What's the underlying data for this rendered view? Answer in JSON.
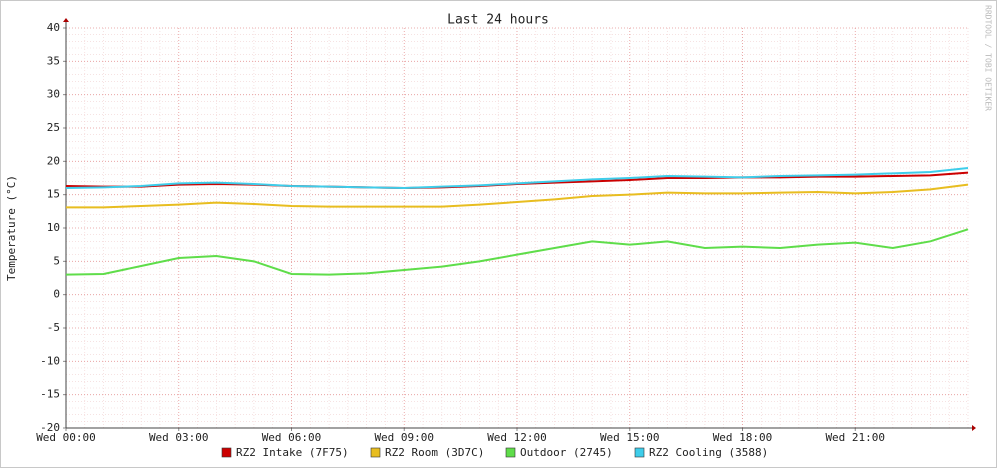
{
  "chart_data": {
    "type": "line",
    "title": "Last 24 hours",
    "y_label": "Temperature (°C)",
    "watermark": "RRDTOOL / TOBI OETIKER",
    "x": [
      0,
      1,
      2,
      3,
      4,
      5,
      6,
      7,
      8,
      9,
      10,
      11,
      12,
      13,
      14,
      15,
      16,
      17,
      18,
      19,
      20,
      21,
      22,
      23,
      24
    ],
    "xlim": [
      0,
      24
    ],
    "xticks": [
      {
        "value": 0,
        "label": "Wed 00:00"
      },
      {
        "value": 3,
        "label": "Wed 03:00"
      },
      {
        "value": 6,
        "label": "Wed 06:00"
      },
      {
        "value": 9,
        "label": "Wed 09:00"
      },
      {
        "value": 12,
        "label": "Wed 12:00"
      },
      {
        "value": 15,
        "label": "Wed 15:00"
      },
      {
        "value": 18,
        "label": "Wed 18:00"
      },
      {
        "value": 21,
        "label": "Wed 21:00"
      }
    ],
    "ylim": [
      -20,
      40
    ],
    "yticks": [
      -20,
      -15,
      -10,
      -5,
      0,
      5,
      10,
      15,
      20,
      25,
      30,
      35,
      40
    ],
    "grid": true,
    "series": [
      {
        "name": "RZ2 Intake (7F75)",
        "color": "#cc0000",
        "values": [
          16.3,
          16.2,
          16.2,
          16.5,
          16.6,
          16.5,
          16.3,
          16.2,
          16.1,
          16.0,
          16.1,
          16.3,
          16.6,
          16.8,
          17.0,
          17.2,
          17.5,
          17.5,
          17.6,
          17.6,
          17.7,
          17.7,
          17.8,
          17.9,
          18.3
        ]
      },
      {
        "name": "RZ2 Room (3D7C)",
        "color": "#e8bd20",
        "values": [
          13.1,
          13.1,
          13.3,
          13.5,
          13.8,
          13.6,
          13.3,
          13.2,
          13.2,
          13.2,
          13.2,
          13.5,
          13.9,
          14.3,
          14.8,
          15.0,
          15.3,
          15.2,
          15.2,
          15.3,
          15.4,
          15.2,
          15.4,
          15.8,
          16.5
        ]
      },
      {
        "name": "Outdoor (2745)",
        "color": "#5fdd4a",
        "values": [
          3.0,
          3.1,
          4.3,
          5.5,
          5.8,
          5.0,
          3.1,
          3.0,
          3.2,
          3.7,
          4.2,
          5.0,
          6.0,
          7.0,
          8.0,
          7.5,
          8.0,
          7.0,
          7.2,
          7.0,
          7.5,
          7.8,
          7.0,
          8.0,
          9.8
        ]
      },
      {
        "name": "RZ2 Cooling (3588)",
        "color": "#3ecdea",
        "values": [
          16.0,
          16.1,
          16.3,
          16.7,
          16.8,
          16.6,
          16.3,
          16.2,
          16.1,
          16.0,
          16.2,
          16.4,
          16.7,
          17.0,
          17.3,
          17.5,
          17.8,
          17.7,
          17.6,
          17.8,
          17.9,
          18.0,
          18.2,
          18.4,
          19.0
        ]
      }
    ]
  }
}
